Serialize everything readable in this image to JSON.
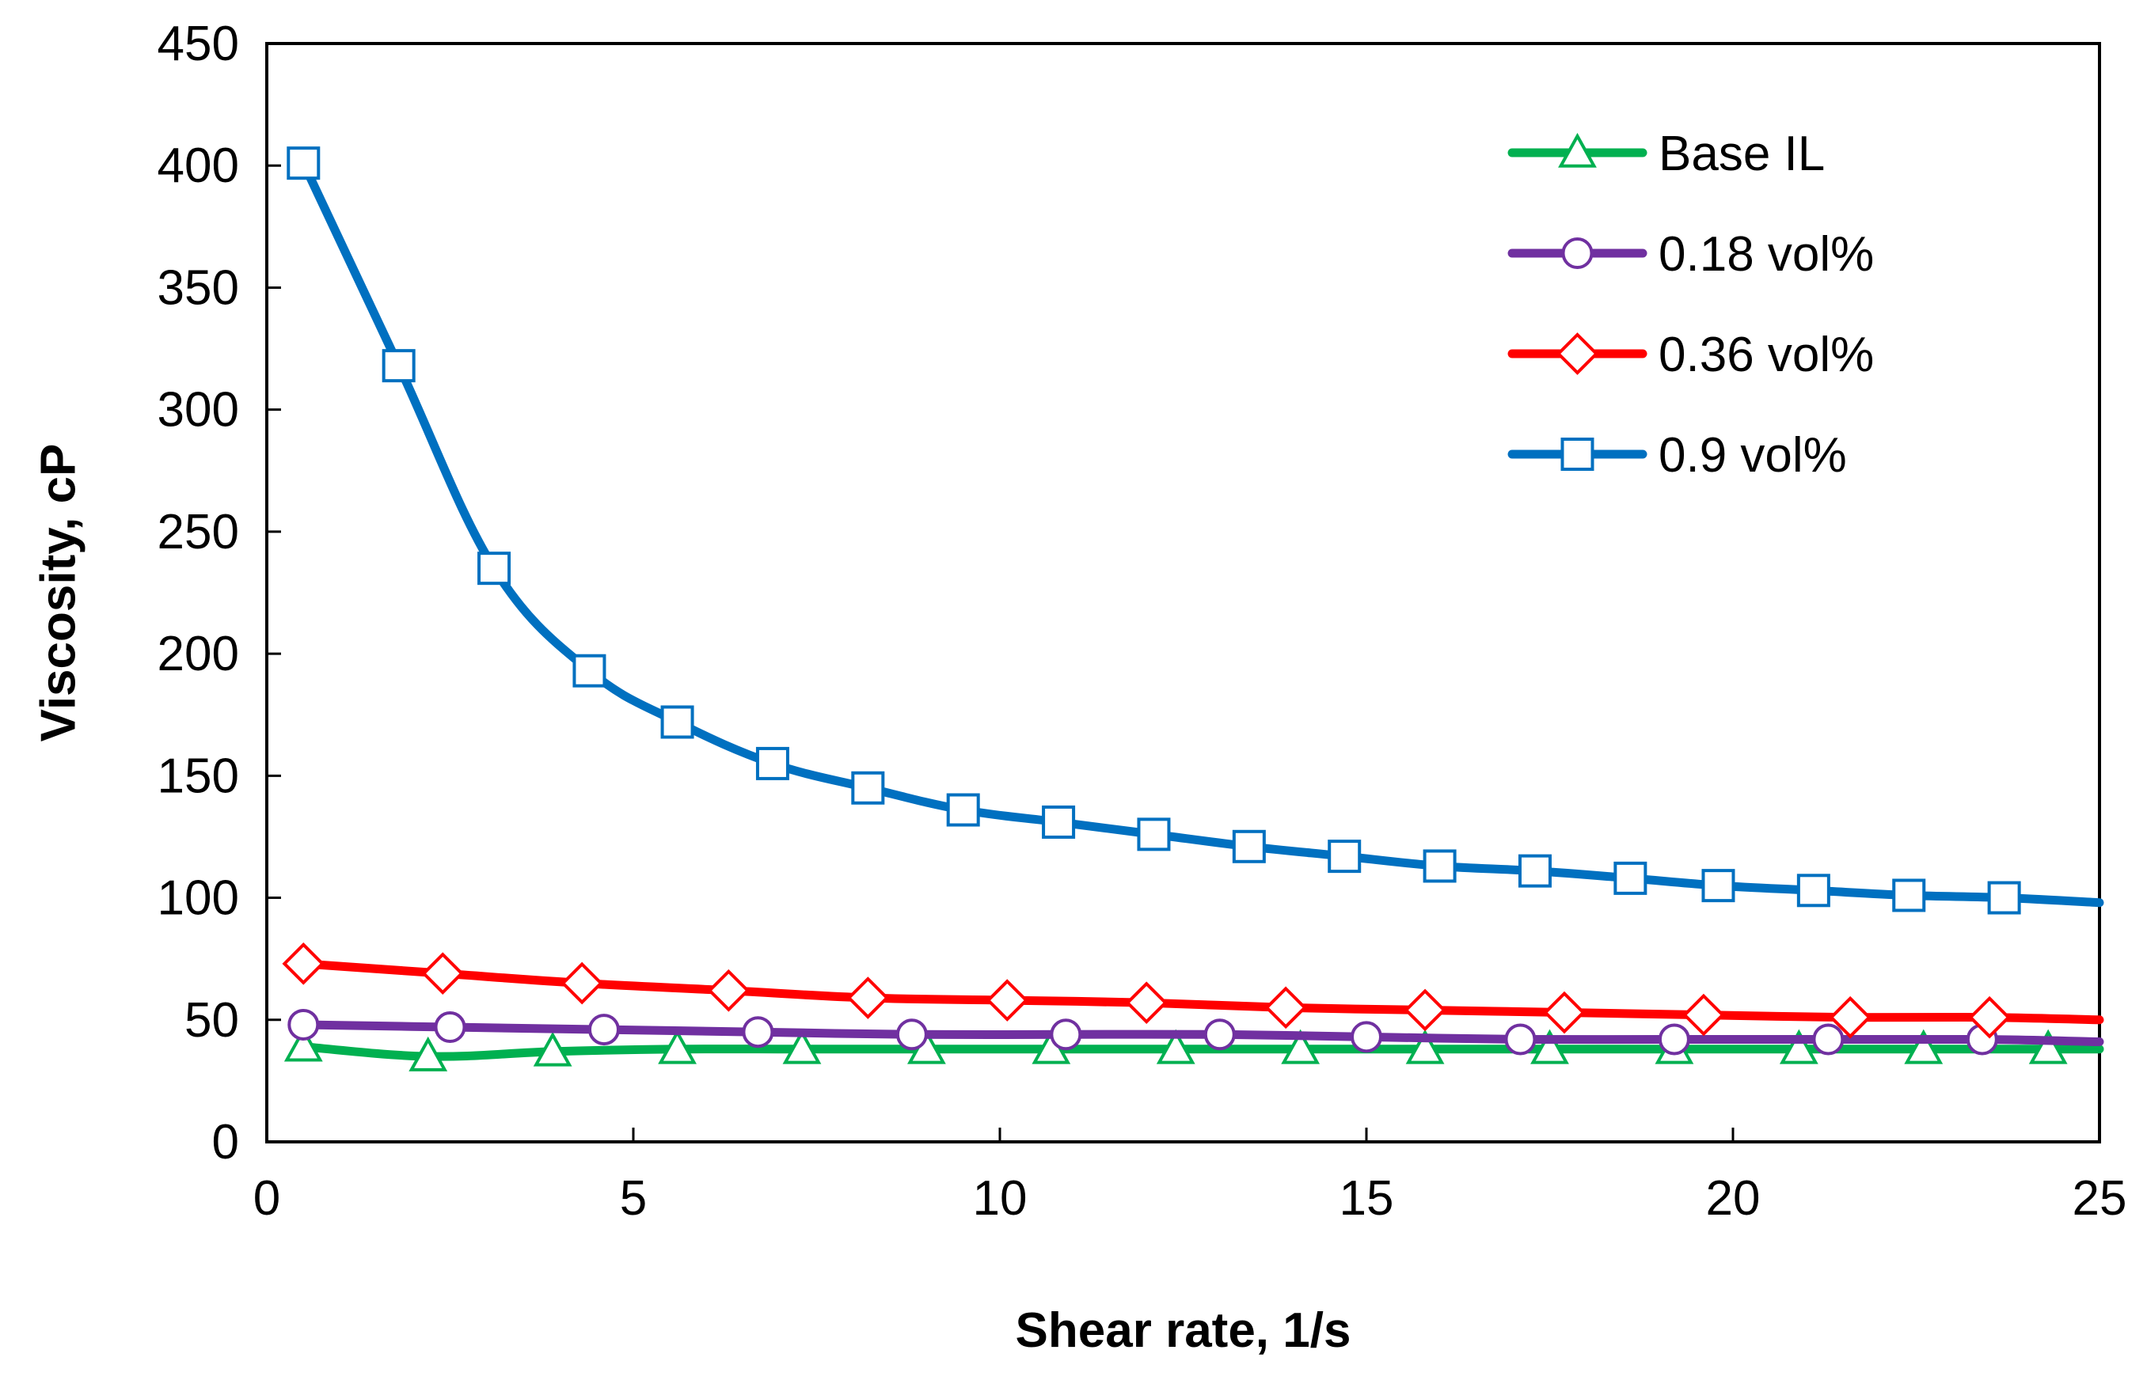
{
  "chart_data": {
    "type": "line",
    "title": "",
    "xlabel": "Shear rate, 1/s",
    "ylabel": "Viscosity, cP",
    "xlim": [
      0,
      25
    ],
    "ylim": [
      0,
      450
    ],
    "xticks": [
      0,
      5,
      10,
      15,
      20,
      25
    ],
    "yticks": [
      0,
      50,
      100,
      150,
      200,
      250,
      300,
      350,
      400,
      450
    ],
    "grid": false,
    "legend_position": "top-right",
    "series": [
      {
        "name": "Base IL",
        "color": "#00B050",
        "marker": "triangle",
        "x": [
          0.5,
          2.2,
          3.9,
          5.6,
          7.3,
          9.0,
          10.7,
          12.4,
          14.1,
          15.8,
          17.5,
          19.2,
          20.9,
          22.6,
          24.3,
          25
        ],
        "y": [
          39,
          35,
          37,
          38,
          38,
          38,
          38,
          38,
          38,
          38,
          38,
          38,
          38,
          38,
          38,
          38
        ]
      },
      {
        "name": "0.18 vol%",
        "color": "#7030A0",
        "marker": "circle",
        "x": [
          0.5,
          2.5,
          4.6,
          6.7,
          8.8,
          10.9,
          13.0,
          15.0,
          17.1,
          19.2,
          21.3,
          23.4,
          25
        ],
        "y": [
          48,
          47,
          46,
          45,
          44,
          44,
          44,
          43,
          42,
          42,
          42,
          42,
          41
        ]
      },
      {
        "name": "0.36 vol%",
        "color": "#FF0000",
        "marker": "diamond",
        "x": [
          0.5,
          2.4,
          4.3,
          6.3,
          8.2,
          10.1,
          12.0,
          13.9,
          15.8,
          17.7,
          19.6,
          21.6,
          23.5,
          25
        ],
        "y": [
          73,
          69,
          65,
          62,
          59,
          58,
          57,
          55,
          54,
          53,
          52,
          51,
          51,
          50
        ]
      },
      {
        "name": "0.9 vol%",
        "color": "#0070C0",
        "marker": "square",
        "x": [
          0.5,
          1.8,
          3.1,
          4.4,
          5.6,
          6.9,
          8.2,
          9.5,
          10.8,
          12.1,
          13.4,
          14.7,
          16.0,
          17.3,
          18.6,
          19.8,
          21.1,
          22.4,
          23.7,
          25
        ],
        "y": [
          401,
          318,
          235,
          193,
          172,
          155,
          145,
          136,
          131,
          126,
          121,
          117,
          113,
          111,
          108,
          105,
          103,
          101,
          100,
          98
        ]
      }
    ]
  }
}
